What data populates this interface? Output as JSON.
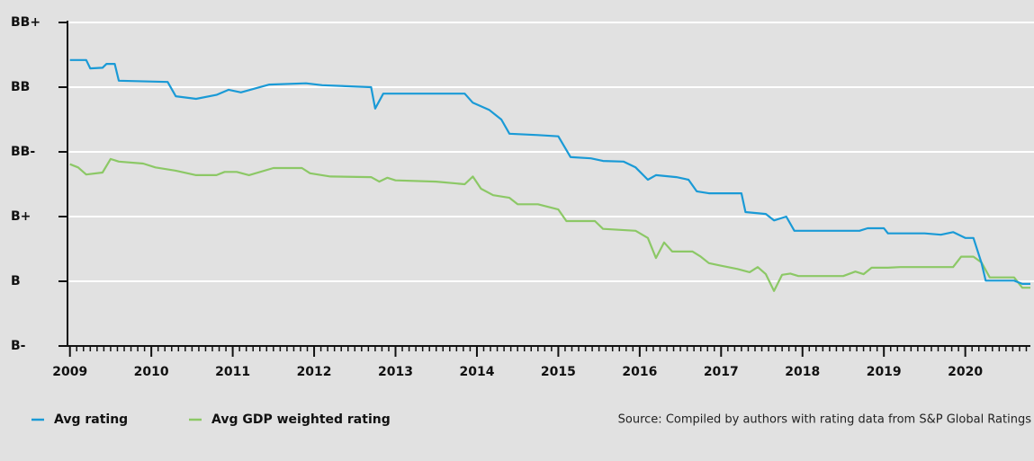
{
  "chart_data": {
    "type": "line",
    "xlim": [
      2008.97,
      2020.8
    ],
    "xticks": [
      2009,
      2010,
      2011,
      2012,
      2013,
      2014,
      2015,
      2016,
      2017,
      2018,
      2019,
      2020
    ],
    "ylim": [
      0,
      5
    ],
    "yticks": [
      {
        "value": 0,
        "label": "B-"
      },
      {
        "value": 1,
        "label": "B"
      },
      {
        "value": 2,
        "label": "B+"
      },
      {
        "value": 3,
        "label": "BB-"
      },
      {
        "value": 4,
        "label": "BB"
      },
      {
        "value": 5,
        "label": "BB+"
      }
    ],
    "grid": true,
    "source": "Source: Compiled by authors with rating data from S&P Global Ratings",
    "series": [
      {
        "name": "Avg rating",
        "color": "#1a9ad6",
        "x": [
          2009.0,
          2009.2,
          2009.25,
          2009.4,
          2009.45,
          2009.55,
          2009.6,
          2010.2,
          2010.3,
          2010.55,
          2010.8,
          2010.95,
          2011.1,
          2011.45,
          2011.9,
          2012.1,
          2012.7,
          2012.75,
          2012.85,
          2013.85,
          2013.95,
          2014.15,
          2014.3,
          2014.4,
          2014.75,
          2015.0,
          2015.15,
          2015.4,
          2015.55,
          2015.8,
          2015.95,
          2016.1,
          2016.2,
          2016.45,
          2016.6,
          2016.7,
          2016.85,
          2017.25,
          2017.3,
          2017.55,
          2017.65,
          2017.8,
          2017.9,
          2018.7,
          2018.8,
          2019.0,
          2019.05,
          2019.5,
          2019.7,
          2019.85,
          2020.0,
          2020.1,
          2020.2,
          2020.25,
          2020.6,
          2020.7,
          2020.8
        ],
        "values": [
          4.42,
          4.42,
          4.29,
          4.3,
          4.36,
          4.36,
          4.1,
          4.08,
          3.86,
          3.82,
          3.88,
          3.96,
          3.92,
          4.04,
          4.06,
          4.03,
          4.0,
          3.67,
          3.9,
          3.9,
          3.76,
          3.65,
          3.5,
          3.28,
          3.26,
          3.24,
          2.92,
          2.9,
          2.86,
          2.85,
          2.76,
          2.57,
          2.64,
          2.61,
          2.57,
          2.39,
          2.36,
          2.36,
          2.07,
          2.04,
          1.94,
          2.0,
          1.78,
          1.78,
          1.82,
          1.82,
          1.74,
          1.74,
          1.72,
          1.76,
          1.67,
          1.67,
          1.28,
          1.01,
          1.01,
          0.96,
          0.96
        ]
      },
      {
        "name": "Avg GDP weighted rating",
        "color": "#8cc866",
        "x": [
          2009.0,
          2009.1,
          2009.2,
          2009.4,
          2009.5,
          2009.6,
          2009.9,
          2010.05,
          2010.3,
          2010.55,
          2010.8,
          2010.9,
          2011.05,
          2011.2,
          2011.5,
          2011.85,
          2011.95,
          2012.2,
          2012.7,
          2012.8,
          2012.9,
          2013.0,
          2013.5,
          2013.85,
          2013.95,
          2014.05,
          2014.2,
          2014.4,
          2014.5,
          2014.75,
          2015.0,
          2015.1,
          2015.45,
          2015.55,
          2015.95,
          2016.1,
          2016.2,
          2016.3,
          2016.4,
          2016.65,
          2016.75,
          2016.85,
          2017.0,
          2017.2,
          2017.35,
          2017.45,
          2017.55,
          2017.65,
          2017.75,
          2017.85,
          2017.95,
          2018.5,
          2018.65,
          2018.75,
          2018.85,
          2019.05,
          2019.2,
          2019.85,
          2019.95,
          2020.1,
          2020.2,
          2020.3,
          2020.6,
          2020.7,
          2020.8
        ],
        "values": [
          2.81,
          2.76,
          2.65,
          2.68,
          2.89,
          2.85,
          2.82,
          2.76,
          2.71,
          2.64,
          2.64,
          2.69,
          2.69,
          2.64,
          2.75,
          2.75,
          2.67,
          2.62,
          2.61,
          2.54,
          2.6,
          2.56,
          2.54,
          2.5,
          2.62,
          2.43,
          2.33,
          2.29,
          2.19,
          2.19,
          2.11,
          1.93,
          1.93,
          1.81,
          1.78,
          1.67,
          1.36,
          1.6,
          1.46,
          1.46,
          1.38,
          1.28,
          1.24,
          1.19,
          1.14,
          1.22,
          1.11,
          0.85,
          1.1,
          1.12,
          1.08,
          1.08,
          1.15,
          1.11,
          1.21,
          1.21,
          1.22,
          1.22,
          1.38,
          1.38,
          1.29,
          1.06,
          1.06,
          0.9,
          0.9
        ]
      }
    ]
  }
}
